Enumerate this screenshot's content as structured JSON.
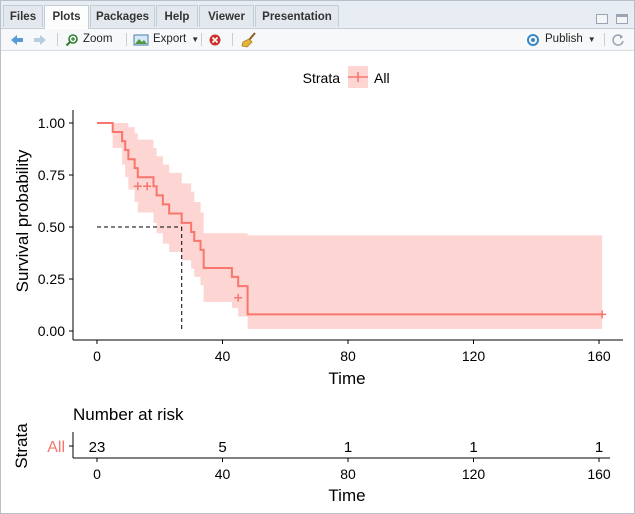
{
  "tabs": [
    "Files",
    "Plots",
    "Packages",
    "Help",
    "Viewer",
    "Presentation"
  ],
  "active_tab": "Plots",
  "toolbar": {
    "zoom": "Zoom",
    "export": "Export",
    "publish": "Publish"
  },
  "colors": {
    "accent": "#f8766d",
    "ci_fill": "#fdd5d2"
  },
  "chart_data": [
    {
      "type": "line",
      "legend": {
        "title": "Strata",
        "entries": [
          "All"
        ],
        "placement": "top"
      },
      "xlabel": "Time",
      "ylabel": "Survival probability",
      "xlim": [
        0,
        160
      ],
      "ylim": [
        0,
        1
      ],
      "x_ticks": [
        "0",
        "40",
        "80",
        "120",
        "160"
      ],
      "y_ticks": [
        "0.00",
        "0.25",
        "0.50",
        "0.75",
        "1.00"
      ],
      "median_survival_time": 27,
      "series": [
        {
          "name": "All",
          "steps": [
            [
              0,
              1.0
            ],
            [
              5,
              0.957
            ],
            [
              8,
              0.913
            ],
            [
              9,
              0.87
            ],
            [
              10,
              0.826
            ],
            [
              12,
              0.783
            ],
            [
              13,
              0.739
            ],
            [
              18,
              0.696
            ],
            [
              19,
              0.652
            ],
            [
              21,
              0.609
            ],
            [
              23,
              0.565
            ],
            [
              27,
              0.52
            ],
            [
              30,
              0.476
            ],
            [
              31,
              0.433
            ],
            [
              33,
              0.39
            ],
            [
              34,
              0.346
            ],
            [
              34,
              0.303
            ],
            [
              43,
              0.26
            ],
            [
              45,
              0.216
            ],
            [
              48,
              0.173
            ],
            [
              48,
              0.08
            ],
            [
              161,
              0.08
            ]
          ],
          "ci_lower": [
            [
              0,
              1.0
            ],
            [
              5,
              0.88
            ],
            [
              8,
              0.8
            ],
            [
              9,
              0.74
            ],
            [
              10,
              0.68
            ],
            [
              12,
              0.62
            ],
            [
              13,
              0.57
            ],
            [
              18,
              0.52
            ],
            [
              19,
              0.47
            ],
            [
              21,
              0.42
            ],
            [
              23,
              0.38
            ],
            [
              27,
              0.34
            ],
            [
              30,
              0.3
            ],
            [
              31,
              0.26
            ],
            [
              33,
              0.22
            ],
            [
              34,
              0.18
            ],
            [
              34,
              0.14
            ],
            [
              43,
              0.11
            ],
            [
              45,
              0.07
            ],
            [
              48,
              0.05
            ],
            [
              48,
              0.01
            ],
            [
              161,
              0.01
            ]
          ],
          "ci_upper": [
            [
              0,
              1.0
            ],
            [
              5,
              1.0
            ],
            [
              8,
              1.0
            ],
            [
              9,
              1.0
            ],
            [
              10,
              0.98
            ],
            [
              12,
              0.95
            ],
            [
              13,
              0.92
            ],
            [
              18,
              0.88
            ],
            [
              19,
              0.84
            ],
            [
              21,
              0.8
            ],
            [
              23,
              0.76
            ],
            [
              27,
              0.71
            ],
            [
              30,
              0.67
            ],
            [
              31,
              0.62
            ],
            [
              33,
              0.57
            ],
            [
              34,
              0.52
            ],
            [
              34,
              0.47
            ],
            [
              43,
              0.47
            ],
            [
              45,
              0.47
            ],
            [
              48,
              0.46
            ],
            [
              48,
              0.46
            ],
            [
              161,
              0.46
            ]
          ],
          "censored": [
            [
              13,
              0.696
            ],
            [
              16,
              0.696
            ],
            [
              45,
              0.16
            ],
            [
              161,
              0.08
            ]
          ]
        }
      ]
    },
    {
      "type": "table",
      "title": "Number at risk",
      "row_axis_label": "Strata",
      "rows": [
        {
          "label": "All",
          "times": [
            0,
            40,
            80,
            120,
            160
          ],
          "values": [
            "23",
            "5",
            "1",
            "1",
            "1"
          ]
        }
      ],
      "xlabel": "Time",
      "x_ticks": [
        "0",
        "40",
        "80",
        "120",
        "160"
      ]
    }
  ]
}
